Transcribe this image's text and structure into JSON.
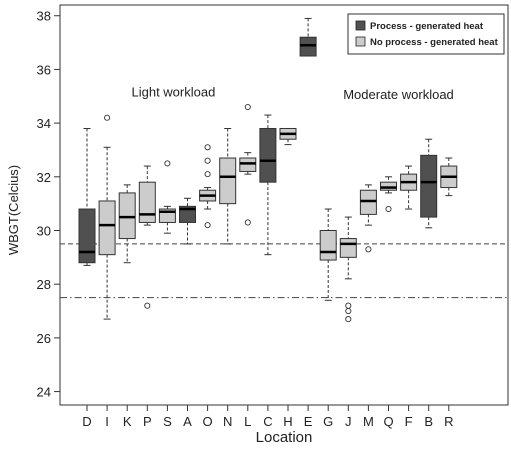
{
  "chart_data": {
    "type": "boxplot",
    "title": "",
    "xlabel": "Location",
    "ylabel": "WBGT(Celcius)",
    "ylim": [
      23.5,
      38.4
    ],
    "yticks": [
      24,
      26,
      28,
      30,
      32,
      34,
      36,
      38
    ],
    "ytick_labels": [
      "24",
      "26",
      "28",
      "30",
      "32",
      "34",
      "36",
      "38"
    ],
    "reference_lines": [
      {
        "y": 29.5,
        "style": "dashed"
      },
      {
        "y": 27.5,
        "style": "dash-dot"
      }
    ],
    "annotations": [
      {
        "text": "Light workload",
        "x": "S",
        "y": 35.0
      },
      {
        "text": "Moderate workload",
        "x": "Q",
        "y": 34.9
      }
    ],
    "legend": {
      "placement": "top-right",
      "entries": [
        {
          "label": "Process - generated heat",
          "color": "#505050"
        },
        {
          "label": "No process - generated heat",
          "color": "#cccccc"
        }
      ]
    },
    "colors": {
      "process": "#505050",
      "no_process": "#cccccc"
    },
    "categories": [
      "D",
      "I",
      "K",
      "P",
      "S",
      "A",
      "O",
      "N",
      "L",
      "C",
      "H",
      "E",
      "G",
      "J",
      "M",
      "Q",
      "F",
      "B",
      "R"
    ],
    "boxes": [
      {
        "cat": "D",
        "process": true,
        "low": 28.7,
        "q1": 28.8,
        "median": 29.2,
        "q3": 30.8,
        "high": 33.8,
        "outliers": []
      },
      {
        "cat": "I",
        "process": false,
        "low": 26.7,
        "q1": 29.1,
        "median": 30.2,
        "q3": 31.1,
        "high": 33.1,
        "outliers": [
          34.2
        ]
      },
      {
        "cat": "K",
        "process": false,
        "low": 28.8,
        "q1": 29.7,
        "median": 30.5,
        "q3": 31.4,
        "high": 31.7,
        "outliers": []
      },
      {
        "cat": "P",
        "process": false,
        "low": 30.2,
        "q1": 30.3,
        "median": 30.6,
        "q3": 31.8,
        "high": 32.4,
        "outliers": [
          27.2
        ]
      },
      {
        "cat": "S",
        "process": false,
        "low": 29.9,
        "q1": 30.3,
        "median": 30.7,
        "q3": 30.8,
        "high": 30.9,
        "outliers": [
          32.5
        ]
      },
      {
        "cat": "A",
        "process": true,
        "low": 29.5,
        "q1": 30.3,
        "median": 30.8,
        "q3": 30.9,
        "high": 31.2,
        "outliers": []
      },
      {
        "cat": "O",
        "process": false,
        "low": 30.8,
        "q1": 31.1,
        "median": 31.3,
        "q3": 31.5,
        "high": 31.6,
        "outliers": [
          33.1,
          32.6,
          32.1,
          30.2
        ]
      },
      {
        "cat": "N",
        "process": false,
        "low": 29.5,
        "q1": 31.0,
        "median": 32.0,
        "q3": 32.7,
        "high": 33.8,
        "outliers": []
      },
      {
        "cat": "L",
        "process": false,
        "low": 32.1,
        "q1": 32.2,
        "median": 32.5,
        "q3": 32.7,
        "high": 32.9,
        "outliers": [
          34.6,
          30.3
        ]
      },
      {
        "cat": "C",
        "process": true,
        "low": 29.1,
        "q1": 31.8,
        "median": 32.6,
        "q3": 33.8,
        "high": 34.3,
        "outliers": []
      },
      {
        "cat": "H",
        "process": false,
        "low": 33.2,
        "q1": 33.4,
        "median": 33.6,
        "q3": 33.8,
        "high": 33.8,
        "outliers": []
      },
      {
        "cat": "E",
        "process": true,
        "low": 36.5,
        "q1": 36.5,
        "median": 36.9,
        "q3": 37.2,
        "high": 37.9,
        "outliers": []
      },
      {
        "cat": "G",
        "process": false,
        "low": 27.4,
        "q1": 28.9,
        "median": 29.2,
        "q3": 30.0,
        "high": 30.8,
        "outliers": []
      },
      {
        "cat": "J",
        "process": false,
        "low": 28.2,
        "q1": 29.0,
        "median": 29.5,
        "q3": 29.7,
        "high": 30.5,
        "outliers": [
          27.2,
          27.0,
          26.7
        ]
      },
      {
        "cat": "M",
        "process": false,
        "low": 30.2,
        "q1": 30.6,
        "median": 31.1,
        "q3": 31.5,
        "high": 31.7,
        "outliers": [
          29.3
        ]
      },
      {
        "cat": "Q",
        "process": false,
        "low": 31.4,
        "q1": 31.5,
        "median": 31.6,
        "q3": 31.8,
        "high": 32.0,
        "outliers": [
          30.8
        ]
      },
      {
        "cat": "F",
        "process": false,
        "low": 30.8,
        "q1": 31.5,
        "median": 31.8,
        "q3": 32.1,
        "high": 32.4,
        "outliers": []
      },
      {
        "cat": "B",
        "process": true,
        "low": 30.1,
        "q1": 30.5,
        "median": 31.8,
        "q3": 32.8,
        "high": 33.4,
        "outliers": []
      },
      {
        "cat": "R",
        "process": false,
        "low": 31.3,
        "q1": 31.6,
        "median": 32.0,
        "q3": 32.4,
        "high": 32.7,
        "outliers": []
      }
    ]
  }
}
